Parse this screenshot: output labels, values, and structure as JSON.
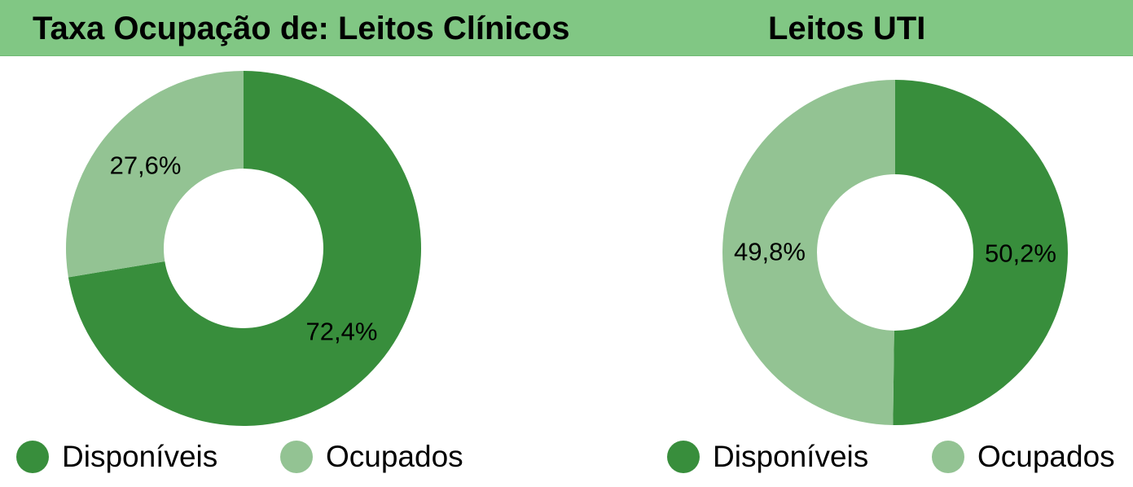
{
  "header": {
    "title": "Taxa Ocupação de:  Leitos Clínicos",
    "title_uti": "Leitos UTI",
    "background": "#81c784"
  },
  "colors": {
    "disponiveis": "#388e3c",
    "ocupados": "#93c393"
  },
  "chart_data": [
    {
      "type": "pie",
      "donut": true,
      "title": "Leitos Clínicos",
      "categories": [
        "Disponíveis",
        "Ocupados"
      ],
      "values": [
        72.4,
        27.6
      ],
      "labels": [
        "72,4%",
        "27,6%"
      ],
      "colors": [
        "#388e3c",
        "#93c393"
      ],
      "legend_position": "bottom"
    },
    {
      "type": "pie",
      "donut": true,
      "title": "Leitos UTI",
      "categories": [
        "Disponíveis",
        "Ocupados"
      ],
      "values": [
        50.2,
        49.8
      ],
      "labels": [
        "50,2%",
        "49,8%"
      ],
      "colors": [
        "#388e3c",
        "#93c393"
      ],
      "legend_position": "bottom"
    }
  ]
}
